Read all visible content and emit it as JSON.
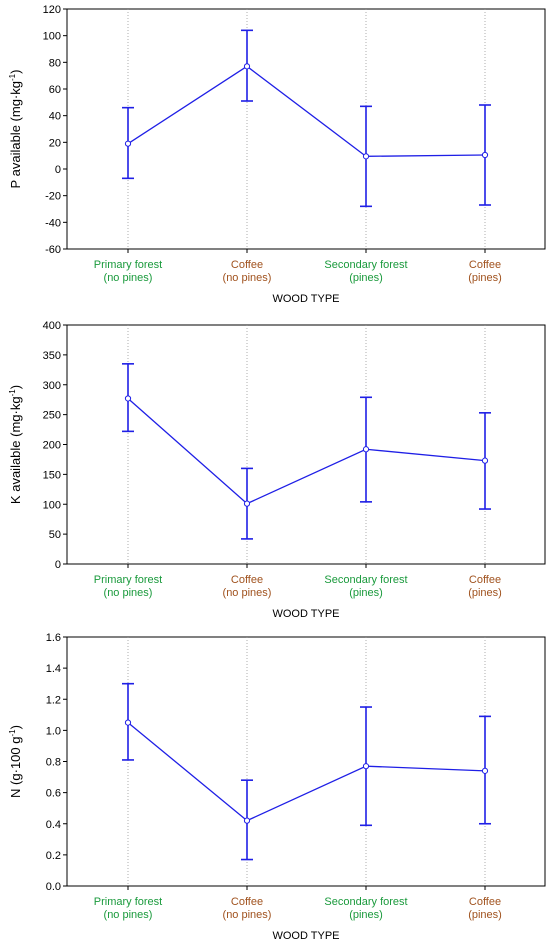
{
  "colors": {
    "series": "#1f1fe6",
    "cat_green": "#1a9a3c",
    "cat_brown": "#a0521e"
  },
  "chart_data": [
    {
      "type": "line",
      "categories": [
        {
          "line1": "Primary forest",
          "line2": "(no pines)",
          "color": "green"
        },
        {
          "line1": "Coffee",
          "line2": "(no pines)",
          "color": "brown"
        },
        {
          "line1": "Secondary forest",
          "line2": "(pines)",
          "color": "green"
        },
        {
          "line1": "Coffee",
          "line2": "(pines)",
          "color": "brown"
        }
      ],
      "values": [
        19,
        77,
        9.5,
        10.5
      ],
      "err_low": [
        -7,
        51,
        -28,
        -27
      ],
      "err_high": [
        46,
        104,
        47,
        48
      ],
      "xlabel": "WOOD TYPE",
      "ylabel_main": "P available  (mg·kg",
      "ylabel_sup": "-1",
      "ylabel_end": ")",
      "ylim": [
        -60,
        120
      ],
      "yticks": [
        -60,
        -40,
        -20,
        0,
        20,
        40,
        60,
        80,
        100,
        120
      ],
      "grid": "vertical dotted"
    },
    {
      "type": "line",
      "categories": [
        {
          "line1": "Primary forest",
          "line2": "(no pines)",
          "color": "green"
        },
        {
          "line1": "Coffee",
          "line2": "(no pines)",
          "color": "brown"
        },
        {
          "line1": "Secondary forest",
          "line2": "(pines)",
          "color": "green"
        },
        {
          "line1": "Coffee",
          "line2": "(pines)",
          "color": "brown"
        }
      ],
      "values": [
        277,
        101,
        192,
        173
      ],
      "err_low": [
        222,
        42,
        104,
        92
      ],
      "err_high": [
        335,
        160,
        279,
        253
      ],
      "xlabel": "WOOD TYPE",
      "ylabel_main": "K available  (mg·kg",
      "ylabel_sup": "-1",
      "ylabel_end": ")",
      "ylim": [
        0,
        400
      ],
      "yticks": [
        0,
        50,
        100,
        150,
        200,
        250,
        300,
        350,
        400
      ],
      "grid": "vertical dotted"
    },
    {
      "type": "line",
      "categories": [
        {
          "line1": "Primary forest",
          "line2": "(no pines)",
          "color": "green"
        },
        {
          "line1": "Coffee",
          "line2": "(no pines)",
          "color": "brown"
        },
        {
          "line1": "Secondary forest",
          "line2": "(pines)",
          "color": "green"
        },
        {
          "line1": "Coffee",
          "line2": "(pines)",
          "color": "brown"
        }
      ],
      "values": [
        1.05,
        0.42,
        0.77,
        0.74
      ],
      "err_low": [
        0.81,
        0.17,
        0.39,
        0.4
      ],
      "err_high": [
        1.3,
        0.68,
        1.15,
        1.09
      ],
      "xlabel": "WOOD TYPE",
      "ylabel_main": "N (g·100 g",
      "ylabel_sup": "-1",
      "ylabel_end": ")",
      "ylim": [
        0,
        1.6
      ],
      "yticks": [
        0.0,
        0.2,
        0.4,
        0.6,
        0.8,
        1.0,
        1.2,
        1.4,
        1.6
      ],
      "tick_decimals": 1,
      "grid": "vertical dotted"
    }
  ]
}
